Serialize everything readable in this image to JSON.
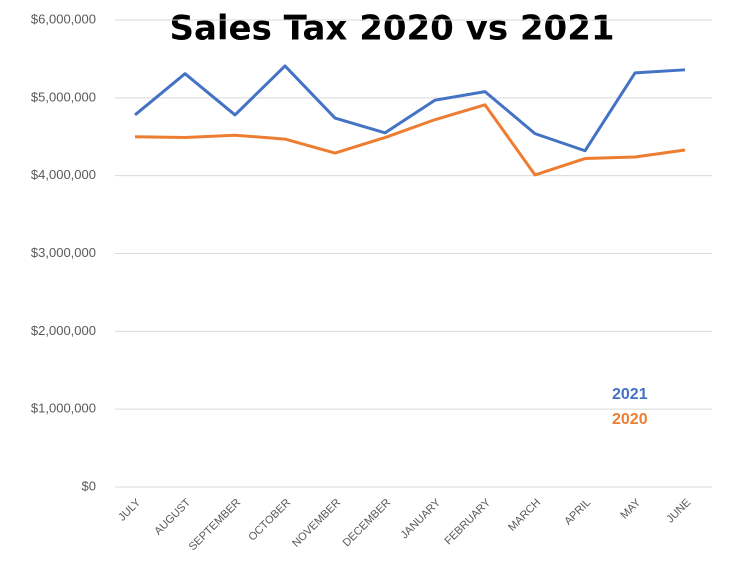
{
  "chart_data": {
    "type": "line",
    "title": "Sales Tax 2020 vs 2021",
    "categories": [
      "JULY",
      "AUGUST",
      "SEPTEMBER",
      "OCTOBER",
      "NOVEMBER",
      "DECEMBER",
      "JANUARY",
      "FEBRUARY",
      "MARCH",
      "APRIL",
      "MAY",
      "JUNE"
    ],
    "series": [
      {
        "name": "2021",
        "color": "#4472c4",
        "values": [
          4780000,
          5310000,
          4780000,
          5410000,
          4740000,
          4550000,
          4970000,
          5080000,
          4540000,
          4320000,
          5320000,
          5360000
        ]
      },
      {
        "name": "2020",
        "color": "#ed7d31",
        "values": [
          4500000,
          4490000,
          4520000,
          4470000,
          4290000,
          4490000,
          4720000,
          4910000,
          4010000,
          4220000,
          4240000,
          4330000
        ]
      }
    ],
    "ylim": [
      0,
      6000000
    ],
    "yticks": [
      {
        "value": 0,
        "label": "$0"
      },
      {
        "value": 1000000,
        "label": "$1,000,000"
      },
      {
        "value": 2000000,
        "label": "$2,000,000"
      },
      {
        "value": 3000000,
        "label": "$3,000,000"
      },
      {
        "value": 4000000,
        "label": "$4,000,000"
      },
      {
        "value": 5000000,
        "label": "$5,000,000"
      },
      {
        "value": 6000000,
        "label": "$6,000,000"
      }
    ],
    "grid": true
  }
}
